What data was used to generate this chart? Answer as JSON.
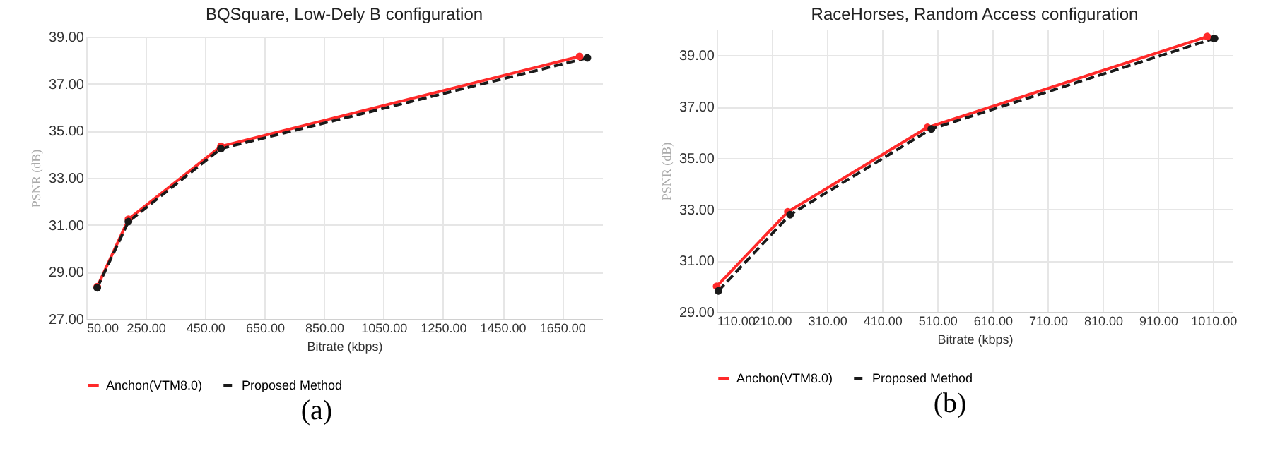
{
  "chart_data": [
    {
      "type": "line",
      "title": "BQSquare, Low-Dely B configuration",
      "xlabel": "Bitrate (kbps)",
      "ylabel": "PSNR (dB)",
      "annotations": [
        "(a)"
      ],
      "series": [
        {
          "name": "Anchon(VTM8.0)",
          "color": "#ff2a2a",
          "line_style": "solid",
          "x": [
            87,
            192,
            503,
            1709
          ],
          "values": [
            28.37,
            31.24,
            34.34,
            38.16
          ]
        },
        {
          "name": "Proposed Method",
          "color": "#1a1a1a",
          "line_style": "dashed",
          "x": [
            87,
            192,
            503,
            1735
          ],
          "values": [
            28.33,
            31.14,
            34.24,
            38.1
          ]
        }
      ],
      "xlim": [
        50,
        1785
      ],
      "xticks": [
        {
          "value": 50,
          "label": "50.00"
        },
        {
          "value": 250,
          "label": "250.00"
        },
        {
          "value": 450,
          "label": "450.00"
        },
        {
          "value": 650,
          "label": "650.00"
        },
        {
          "value": 850,
          "label": "850.00"
        },
        {
          "value": 1050,
          "label": "1050.00"
        },
        {
          "value": 1250,
          "label": "1250.00"
        },
        {
          "value": 1450,
          "label": "1450.00"
        },
        {
          "value": 1650,
          "label": "1650.00"
        }
      ],
      "ylim": [
        27,
        39
      ],
      "yticks": [
        {
          "value": 27,
          "label": "27.00"
        },
        {
          "value": 29,
          "label": "29.00"
        },
        {
          "value": 31,
          "label": "31.00"
        },
        {
          "value": 33,
          "label": "33.00"
        },
        {
          "value": 35,
          "label": "35.00"
        },
        {
          "value": 37,
          "label": "37.00"
        },
        {
          "value": 39,
          "label": "39.00"
        }
      ],
      "grid": true,
      "legend": "bottom",
      "marker": "circle"
    },
    {
      "type": "line",
      "title": "RaceHorses, Random Access configuration",
      "xlabel": "Bitrate (kbps)",
      "ylabel": "PSNR (dB)",
      "annotations": [
        "(b)"
      ],
      "series": [
        {
          "name": "Anchon(VTM8.0)",
          "color": "#ff2a2a",
          "line_style": "solid",
          "x": [
            110,
            239,
            492,
            999
          ],
          "values": [
            30.0,
            32.9,
            36.19,
            39.73
          ]
        },
        {
          "name": "Proposed Method",
          "color": "#1a1a1a",
          "line_style": "dashed",
          "x": [
            113,
            243,
            499,
            1012
          ],
          "values": [
            29.82,
            32.79,
            36.13,
            39.66
          ]
        }
      ],
      "xlim": [
        110,
        1045
      ],
      "xticks": [
        {
          "value": 110,
          "label": "110.00"
        },
        {
          "value": 210,
          "label": "210.00"
        },
        {
          "value": 310,
          "label": "310.00"
        },
        {
          "value": 410,
          "label": "410.00"
        },
        {
          "value": 510,
          "label": "510.00"
        },
        {
          "value": 610,
          "label": "610.00"
        },
        {
          "value": 710,
          "label": "710.00"
        },
        {
          "value": 810,
          "label": "810.00"
        },
        {
          "value": 910,
          "label": "910.00"
        },
        {
          "value": 1010,
          "label": "1010.00"
        }
      ],
      "ylim": [
        29,
        40
      ],
      "yticks": [
        {
          "value": 29,
          "label": "29.00"
        },
        {
          "value": 31,
          "label": "31.00"
        },
        {
          "value": 33,
          "label": "33.00"
        },
        {
          "value": 35,
          "label": "35.00"
        },
        {
          "value": 37,
          "label": "37.00"
        },
        {
          "value": 39,
          "label": "39.00"
        }
      ],
      "grid": true,
      "legend": "bottom",
      "marker": "circle"
    }
  ]
}
